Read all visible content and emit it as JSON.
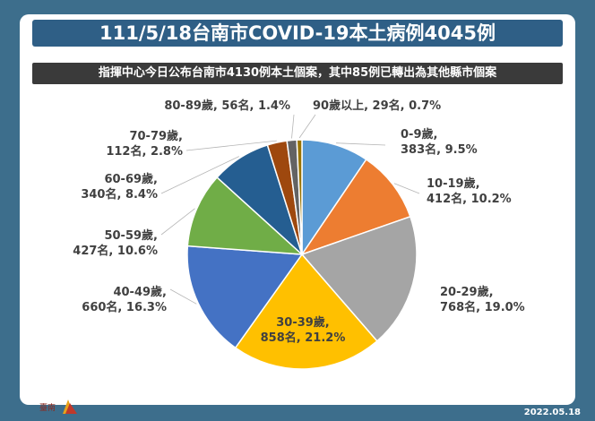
{
  "header": {
    "title": "111/5/18台南市COVID-19本土病例4045例",
    "subtitle": "指揮中心今日公布台南市4130例本土個案，其中85例已轉出為其他縣市個案"
  },
  "footer": {
    "date": "2022.05.18"
  },
  "colors": {
    "background": "#3d6e8c",
    "title_bar": "#2f5f86",
    "subtitle_bar": "#3a3a3a"
  },
  "chart_data": {
    "type": "pie",
    "title": "",
    "slices": [
      {
        "category": "0-9歲",
        "count": 383,
        "count_label": "383名",
        "percent": 9.5,
        "label_line1": "0-9歲,",
        "label_line2": "383名, 9.5%",
        "color": "#5b9bd5"
      },
      {
        "category": "10-19歲",
        "count": 412,
        "count_label": "412名",
        "percent": 10.2,
        "label_line1": "10-19歲,",
        "label_line2": "412名, 10.2%",
        "color": "#ed7d31"
      },
      {
        "category": "20-29歲",
        "count": 768,
        "count_label": "768名",
        "percent": 19.0,
        "label_line1": "20-29歲,",
        "label_line2": "768名, 19.0%",
        "color": "#a5a5a5"
      },
      {
        "category": "30-39歲",
        "count": 858,
        "count_label": "858名",
        "percent": 21.2,
        "label_line1": "30-39歲,",
        "label_line2": "858名, 21.2%",
        "color": "#ffc000"
      },
      {
        "category": "40-49歲",
        "count": 660,
        "count_label": "660名",
        "percent": 16.3,
        "label_line1": "40-49歲,",
        "label_line2": "660名, 16.3%",
        "color": "#4472c4"
      },
      {
        "category": "50-59歲",
        "count": 427,
        "count_label": "427名",
        "percent": 10.6,
        "label_line1": "50-59歲,",
        "label_line2": "427名, 10.6%",
        "color": "#70ad47"
      },
      {
        "category": "60-69歲",
        "count": 340,
        "count_label": "340名",
        "percent": 8.4,
        "label_line1": "60-69歲,",
        "label_line2": "340名, 8.4%",
        "color": "#255e91"
      },
      {
        "category": "70-79歲",
        "count": 112,
        "count_label": "112名",
        "percent": 2.8,
        "label_line1": "70-79歲,",
        "label_line2": "112名, 2.8%",
        "color": "#9e480e"
      },
      {
        "category": "80-89歲",
        "count": 56,
        "count_label": "56名",
        "percent": 1.4,
        "label_line1": "80-89歲, 56名, 1.4%",
        "label_line2": "",
        "color": "#636363"
      },
      {
        "category": "90歲以上",
        "count": 29,
        "count_label": "29名",
        "percent": 0.7,
        "label_line1": "90歲以上, 29名, 0.7%",
        "label_line2": "",
        "color": "#997300"
      }
    ]
  },
  "logo": {
    "text": "臺南"
  }
}
